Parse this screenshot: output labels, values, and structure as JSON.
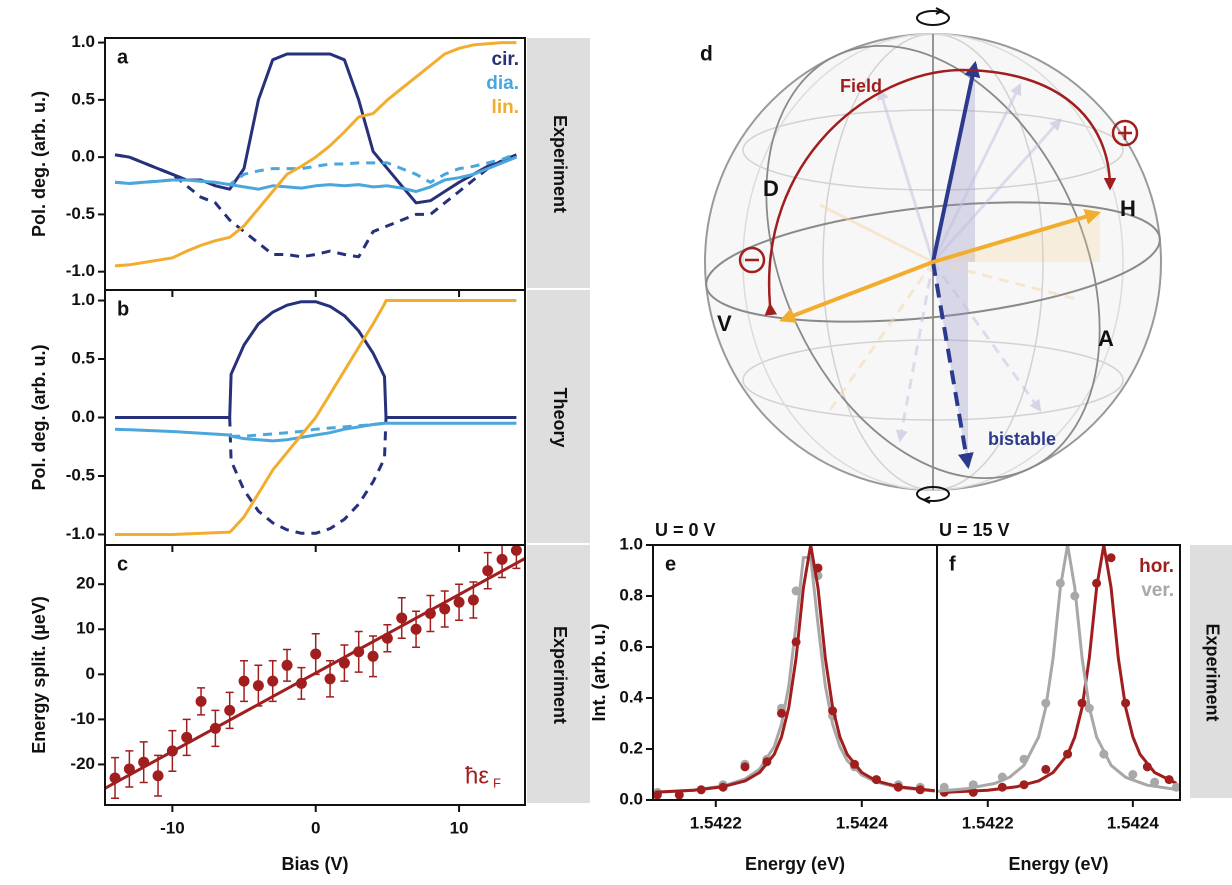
{
  "chart_data": [
    {
      "type": "line",
      "label": "a",
      "side_label": "Experiment",
      "y_label": "Pol. deg. (arb. u.)",
      "x_tick_labels": false,
      "legend": "top-right",
      "x": [
        -14,
        -13,
        -12,
        -11,
        -10,
        -9,
        -8,
        -7,
        -6,
        -5,
        -4,
        -3,
        -2,
        -1,
        0,
        1,
        2,
        3,
        4,
        5,
        6,
        7,
        8,
        9,
        10,
        11,
        12,
        13,
        14
      ],
      "xlim": [
        -14.7,
        14.6
      ],
      "xticks": [
        -10,
        0,
        10
      ],
      "ylim": [
        -1.16,
        1.04
      ],
      "yticks": [
        {
          "value": 1.0,
          "label": "1.0"
        },
        0.5,
        {
          "value": 0,
          "label": "0.0"
        },
        -0.5,
        {
          "value": -1.0,
          "label": "-1.0"
        }
      ],
      "series": [
        {
          "name": "cir.",
          "color": "#27307a",
          "values": [
            0.02,
            0.0,
            -0.05,
            -0.1,
            -0.15,
            -0.2,
            -0.2,
            -0.25,
            -0.28,
            -0.1,
            0.5,
            0.85,
            0.9,
            0.9,
            0.9,
            0.9,
            0.85,
            0.5,
            0.05,
            -0.1,
            -0.25,
            -0.4,
            -0.38,
            -0.3,
            -0.22,
            -0.15,
            -0.08,
            -0.04,
            0.0
          ],
          "dashed_values": [
            0.02,
            0.0,
            -0.05,
            -0.1,
            -0.15,
            -0.25,
            -0.35,
            -0.4,
            -0.55,
            -0.65,
            -0.75,
            -0.85,
            -0.85,
            -0.87,
            -0.85,
            -0.82,
            -0.85,
            -0.87,
            -0.65,
            -0.6,
            -0.55,
            -0.5,
            -0.5,
            -0.4,
            -0.3,
            -0.2,
            -0.1,
            -0.03,
            0.02
          ]
        },
        {
          "name": "dia.",
          "color": "#4aa6dc",
          "values": [
            -0.22,
            -0.23,
            -0.22,
            -0.21,
            -0.2,
            -0.2,
            -0.21,
            -0.22,
            -0.24,
            -0.26,
            -0.28,
            -0.25,
            -0.26,
            -0.27,
            -0.25,
            -0.24,
            -0.25,
            -0.24,
            -0.26,
            -0.25,
            -0.27,
            -0.3,
            -0.26,
            -0.2,
            -0.18,
            -0.15,
            -0.1,
            -0.05,
            0.0
          ],
          "dashed_values": [
            -0.22,
            -0.23,
            -0.22,
            -0.21,
            -0.2,
            -0.2,
            -0.21,
            -0.22,
            -0.24,
            -0.15,
            -0.12,
            -0.1,
            -0.1,
            -0.1,
            -0.08,
            -0.06,
            -0.06,
            -0.05,
            -0.05,
            -0.05,
            -0.1,
            -0.15,
            -0.22,
            -0.15,
            -0.1,
            -0.08,
            -0.05,
            -0.02,
            0.03
          ]
        },
        {
          "name": "lin.",
          "color": "#f2ad2f",
          "values": [
            -0.95,
            -0.94,
            -0.92,
            -0.9,
            -0.88,
            -0.82,
            -0.77,
            -0.73,
            -0.7,
            -0.6,
            -0.45,
            -0.3,
            -0.15,
            -0.08,
            0.0,
            0.1,
            0.22,
            0.35,
            0.38,
            0.5,
            0.6,
            0.7,
            0.8,
            0.9,
            0.95,
            0.98,
            0.99,
            1.0,
            1.0
          ]
        }
      ]
    },
    {
      "type": "line",
      "label": "b",
      "side_label": "Theory",
      "y_label": "Pol. deg. (arb. u.)",
      "x_tick_labels": false,
      "x": [
        -14,
        -10,
        -6,
        -5.9,
        -5,
        -4,
        -3,
        -2,
        -1,
        0,
        1,
        2,
        3,
        4,
        4.8,
        4.9,
        6,
        10,
        14
      ],
      "xlim": [
        -14.7,
        14.6
      ],
      "xticks": [
        -10,
        0,
        10
      ],
      "ylim": [
        -1.09,
        1.09
      ],
      "yticks": [
        {
          "value": 1.0,
          "label": "1.0"
        },
        0.5,
        {
          "value": 0,
          "label": "0.0"
        },
        -0.5,
        {
          "value": -1.0,
          "label": "-1.0"
        }
      ],
      "series": [
        {
          "color": "#27307a",
          "values": [
            0,
            0,
            0,
            0.37,
            0.62,
            0.8,
            0.9,
            0.96,
            0.99,
            0.99,
            0.95,
            0.87,
            0.74,
            0.55,
            0.35,
            0,
            0,
            0,
            0
          ],
          "dashed_values": [
            null,
            null,
            0,
            -0.37,
            -0.62,
            -0.8,
            -0.9,
            -0.96,
            -0.99,
            -0.99,
            -0.95,
            -0.87,
            -0.74,
            -0.55,
            -0.35,
            0,
            null,
            null,
            null
          ]
        },
        {
          "color": "#4aa6dc",
          "values": [
            -0.1,
            -0.12,
            -0.15,
            -0.16,
            -0.18,
            -0.19,
            -0.2,
            -0.19,
            -0.17,
            -0.15,
            -0.13,
            -0.1,
            -0.08,
            -0.06,
            -0.05,
            -0.05,
            -0.05,
            -0.05,
            -0.05
          ],
          "dashed_values": [
            null,
            null,
            null,
            -0.16,
            -0.16,
            -0.15,
            -0.14,
            -0.13,
            -0.12,
            -0.1,
            -0.09,
            -0.08,
            -0.07,
            -0.06,
            -0.05,
            null,
            null,
            null,
            null
          ]
        },
        {
          "color": "#f2ad2f",
          "values": [
            -1,
            -1,
            -0.98,
            -0.97,
            -0.85,
            -0.65,
            -0.45,
            -0.3,
            -0.15,
            0.0,
            0.2,
            0.4,
            0.6,
            0.8,
            0.97,
            1,
            1,
            1,
            1
          ]
        }
      ]
    },
    {
      "type": "scatter",
      "label": "c",
      "side_label": "Experiment",
      "y_label": "Energy split. (µeV)",
      "x_label": "Bias (V)",
      "color": "#a01e1e",
      "x": [
        -14,
        -13,
        -12,
        -11,
        -10,
        -9,
        -8,
        -7,
        -6,
        -5,
        -4,
        -3,
        -2,
        -1,
        0,
        1,
        2,
        3,
        4,
        5,
        6,
        7,
        8,
        9,
        10,
        11,
        12,
        13,
        14
      ],
      "values": [
        -23,
        -21,
        -19.5,
        -22.5,
        -17,
        -14,
        -6,
        -12,
        -8,
        -1.5,
        -2.5,
        -1.5,
        2,
        -2,
        4.5,
        -1,
        2.5,
        5,
        4,
        8,
        12.5,
        10,
        13.5,
        14.5,
        16,
        16.5,
        23,
        25.5,
        27.5
      ],
      "errors": [
        4.5,
        4,
        4.5,
        4.5,
        4.5,
        4,
        3,
        4,
        4,
        4.5,
        4.5,
        4.5,
        3.5,
        3.5,
        4.5,
        4,
        4,
        4.5,
        4.5,
        3,
        4.5,
        4,
        4,
        4,
        4,
        4,
        4,
        4,
        4
      ],
      "fit": {
        "x": [
          -14.7,
          14.6
        ],
        "values": [
          -25.3,
          25.7
        ]
      },
      "annotation": {
        "text": "ħε",
        "subscript": "F"
      },
      "xlim": [
        -14.7,
        14.6
      ],
      "xticks": [
        -10,
        0,
        10
      ],
      "ylim": [
        -29,
        28.7
      ],
      "yticks": [
        20,
        10,
        0,
        -10,
        -20
      ]
    },
    {
      "type": "line",
      "label": "e",
      "title": "U = 0 V",
      "y_label": "Int. (arb. u.)",
      "x_label": "Energy (eV)",
      "xlim": [
        1.542114,
        1.542503
      ],
      "xticks": [
        1.5422,
        1.5424
      ],
      "ylim": [
        0,
        1.0
      ],
      "yticks": [
        {
          "value": 0,
          "label": "0.0"
        },
        0.2,
        0.4,
        0.6,
        0.8,
        {
          "value": 1.0,
          "label": "1.0"
        }
      ],
      "series": [
        {
          "color": "#a8a8a8",
          "x": [
            1.54212,
            1.54217,
            1.54221,
            1.54224,
            1.54226,
            1.54228,
            1.54229,
            1.5423,
            1.54231,
            1.54232,
            1.54233,
            1.54234,
            1.54235,
            1.54236,
            1.54237,
            1.54238,
            1.5424,
            1.54242,
            1.54245,
            1.5425
          ],
          "values": [
            0.031,
            0.039,
            0.055,
            0.082,
            0.121,
            0.209,
            0.298,
            0.448,
            0.689,
            0.951,
            0.951,
            0.689,
            0.448,
            0.298,
            0.209,
            0.155,
            0.098,
            0.07,
            0.049,
            0.035
          ],
          "dots_x": [
            1.54212,
            1.54215,
            1.54218,
            1.54221,
            1.54224,
            1.54227,
            1.54229,
            1.54231,
            1.54234,
            1.54236,
            1.54239,
            1.54242,
            1.54245,
            1.54248
          ],
          "dots": [
            0.03,
            0.02,
            0.04,
            0.06,
            0.14,
            0.16,
            0.36,
            0.82,
            0.88,
            0.33,
            0.13,
            0.08,
            0.06,
            0.05
          ]
        },
        {
          "color": "#a01e1e",
          "x": [
            1.54212,
            1.54217,
            1.54221,
            1.54224,
            1.54226,
            1.54228,
            1.54229,
            1.5423,
            1.54231,
            1.54232,
            1.54233,
            1.54234,
            1.54235,
            1.54236,
            1.54237,
            1.54238,
            1.5424,
            1.54242,
            1.54245,
            1.5425
          ],
          "values": [
            0.031,
            0.038,
            0.052,
            0.075,
            0.108,
            0.179,
            0.247,
            0.363,
            0.557,
            0.832,
            1.0,
            0.832,
            0.557,
            0.363,
            0.247,
            0.179,
            0.108,
            0.075,
            0.052,
            0.036
          ],
          "dots_x": [
            1.54212,
            1.54215,
            1.54218,
            1.54221,
            1.54224,
            1.54227,
            1.54229,
            1.54231,
            1.54234,
            1.54236,
            1.54239,
            1.54242,
            1.54245,
            1.54248
          ],
          "dots": [
            0.02,
            0.02,
            0.04,
            0.05,
            0.13,
            0.15,
            0.34,
            0.62,
            0.91,
            0.35,
            0.14,
            0.08,
            0.05,
            0.04
          ]
        }
      ]
    },
    {
      "type": "line",
      "label": "f",
      "title": "U = 15 V",
      "side_label": "Experiment",
      "x_label": "Energy (eV)",
      "legend": "top-right",
      "xlim": [
        1.54213,
        1.542465
      ],
      "xticks": [
        1.5422,
        1.5424
      ],
      "ylim": [
        0,
        1.0
      ],
      "series": [
        {
          "name": "hor.",
          "color": "#a01e1e",
          "x": [
            1.54214,
            1.5422,
            1.54224,
            1.54227,
            1.54229,
            1.54231,
            1.54232,
            1.54233,
            1.54234,
            1.54235,
            1.54236,
            1.54237,
            1.54238,
            1.54239,
            1.5424,
            1.54241,
            1.54243,
            1.54246
          ],
          "values": [
            0.03,
            0.038,
            0.052,
            0.075,
            0.108,
            0.179,
            0.247,
            0.363,
            0.557,
            0.832,
            1.0,
            0.832,
            0.557,
            0.363,
            0.247,
            0.179,
            0.108,
            0.065
          ],
          "dots_x": [
            1.54214,
            1.54218,
            1.54222,
            1.54225,
            1.54228,
            1.54231,
            1.54233,
            1.54235,
            1.54237,
            1.54239,
            1.54242,
            1.54245
          ],
          "dots": [
            0.03,
            0.03,
            0.05,
            0.06,
            0.12,
            0.18,
            0.38,
            0.85,
            0.95,
            0.38,
            0.13,
            0.08
          ]
        },
        {
          "name": "ver.",
          "color": "#a8a8a8",
          "x": [
            1.54213,
            1.54217,
            1.54221,
            1.54223,
            1.54225,
            1.54227,
            1.54228,
            1.54229,
            1.5423,
            1.54231,
            1.54232,
            1.54233,
            1.54234,
            1.54235,
            1.54237,
            1.54239,
            1.54242,
            1.54246
          ],
          "values": [
            0.034,
            0.044,
            0.065,
            0.089,
            0.136,
            0.247,
            0.363,
            0.557,
            0.832,
            1.0,
            0.832,
            0.557,
            0.363,
            0.247,
            0.136,
            0.089,
            0.058,
            0.041
          ],
          "dots_x": [
            1.54214,
            1.54218,
            1.54222,
            1.54225,
            1.54228,
            1.5423,
            1.54232,
            1.54234,
            1.54236,
            1.5424,
            1.54243,
            1.54246
          ],
          "dots": [
            0.05,
            0.06,
            0.09,
            0.16,
            0.38,
            0.85,
            0.8,
            0.36,
            0.18,
            0.1,
            0.07,
            0.05
          ]
        }
      ]
    }
  ],
  "sphere": {
    "label": "d",
    "field": "Field",
    "d": "D",
    "h": "H",
    "v": "V",
    "a": "A",
    "bistable": "bistable"
  }
}
